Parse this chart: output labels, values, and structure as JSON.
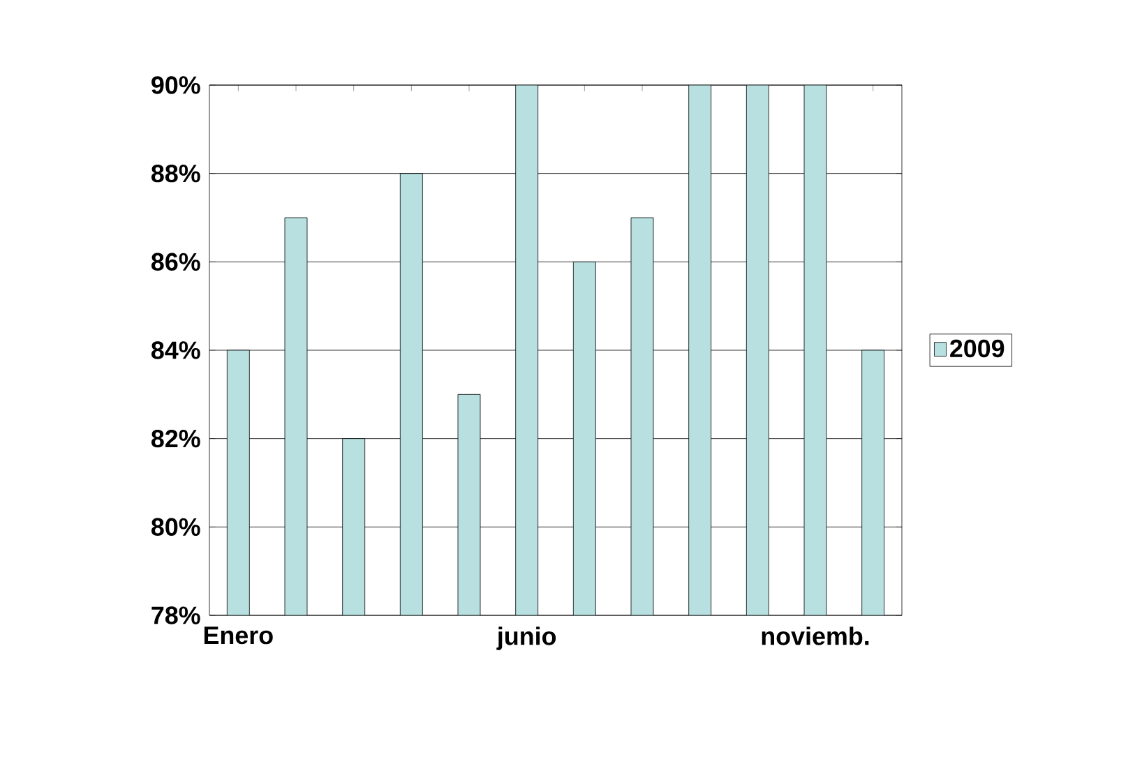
{
  "chart_data": {
    "type": "bar",
    "categories": [
      "Enero",
      null,
      null,
      null,
      null,
      "junio",
      null,
      null,
      null,
      null,
      "noviemb.",
      null
    ],
    "series": [
      {
        "name": "2009",
        "color": "#b8e0e0",
        "values": [
          84,
          87,
          82,
          88,
          83,
          90,
          86,
          87,
          90,
          90,
          90,
          84
        ]
      }
    ],
    "ylim": [
      78,
      90
    ],
    "yticks": [
      {
        "value": 78,
        "label": "78%"
      },
      {
        "value": 80,
        "label": "80%"
      },
      {
        "value": 82,
        "label": "82%"
      },
      {
        "value": 84,
        "label": "84%"
      },
      {
        "value": 86,
        "label": "86%"
      },
      {
        "value": 88,
        "label": "88%"
      },
      {
        "value": 90,
        "label": "90%"
      }
    ],
    "grid": "y",
    "legend": "right"
  }
}
